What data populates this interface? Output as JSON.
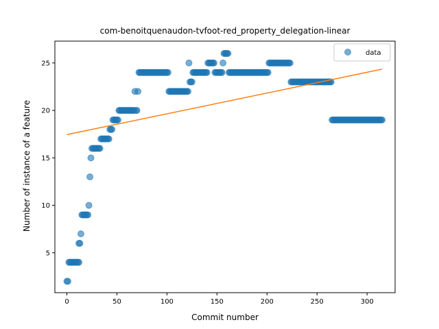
{
  "chart_data": {
    "type": "scatter",
    "title": "com-benoitquenaudon-tvfoot-red_property_delegation-linear",
    "xlabel": "Commit number",
    "ylabel": "Number of instance of a feature",
    "xlim": [
      -12,
      328
    ],
    "ylim": [
      0.8,
      27.3
    ],
    "xticks": [
      0,
      50,
      100,
      150,
      200,
      250,
      300
    ],
    "yticks": [
      5,
      10,
      15,
      20,
      25
    ],
    "grid": false,
    "legend": {
      "position": "upper right",
      "entries": [
        "data"
      ]
    },
    "colors": {
      "data": "#1f77b4",
      "fit": "#ff7f0e"
    },
    "series": [
      {
        "name": "data",
        "kind": "scatter",
        "segments": [
          {
            "x_start": 0,
            "x_end": 1,
            "y": 2
          },
          {
            "x_start": 2,
            "x_end": 12,
            "y": 4
          },
          {
            "x_start": 12,
            "x_end": 13,
            "y": 6
          },
          {
            "x_start": 14,
            "x_end": 14,
            "y": 7
          },
          {
            "x_start": 15,
            "x_end": 21,
            "y": 9
          },
          {
            "x_start": 22,
            "x_end": 22,
            "y": 10
          },
          {
            "x_start": 23,
            "x_end": 23,
            "y": 13
          },
          {
            "x_start": 24,
            "x_end": 24,
            "y": 15
          },
          {
            "x_start": 25,
            "x_end": 33,
            "y": 16
          },
          {
            "x_start": 34,
            "x_end": 42,
            "y": 17
          },
          {
            "x_start": 43,
            "x_end": 45,
            "y": 18
          },
          {
            "x_start": 46,
            "x_end": 51,
            "y": 19
          },
          {
            "x_start": 52,
            "x_end": 67,
            "y": 20
          },
          {
            "x_start": 68,
            "x_end": 68,
            "y": 22
          },
          {
            "x_start": 69,
            "x_end": 70,
            "y": 20
          },
          {
            "x_start": 71,
            "x_end": 71,
            "y": 22
          },
          {
            "x_start": 72,
            "x_end": 101,
            "y": 24
          },
          {
            "x_start": 102,
            "x_end": 121,
            "y": 22
          },
          {
            "x_start": 122,
            "x_end": 122,
            "y": 25
          },
          {
            "x_start": 123,
            "x_end": 125,
            "y": 23
          },
          {
            "x_start": 126,
            "x_end": 140,
            "y": 24
          },
          {
            "x_start": 141,
            "x_end": 147,
            "y": 25
          },
          {
            "x_start": 148,
            "x_end": 155,
            "y": 24
          },
          {
            "x_start": 156,
            "x_end": 156,
            "y": 25
          },
          {
            "x_start": 157,
            "x_end": 161,
            "y": 26
          },
          {
            "x_start": 162,
            "x_end": 201,
            "y": 24
          },
          {
            "x_start": 202,
            "x_end": 223,
            "y": 25
          },
          {
            "x_start": 224,
            "x_end": 264,
            "y": 23
          },
          {
            "x_start": 265,
            "x_end": 315,
            "y": 19
          }
        ]
      },
      {
        "name": "",
        "kind": "line",
        "x": [
          0,
          315
        ],
        "y": [
          17.45,
          24.35
        ]
      }
    ]
  }
}
